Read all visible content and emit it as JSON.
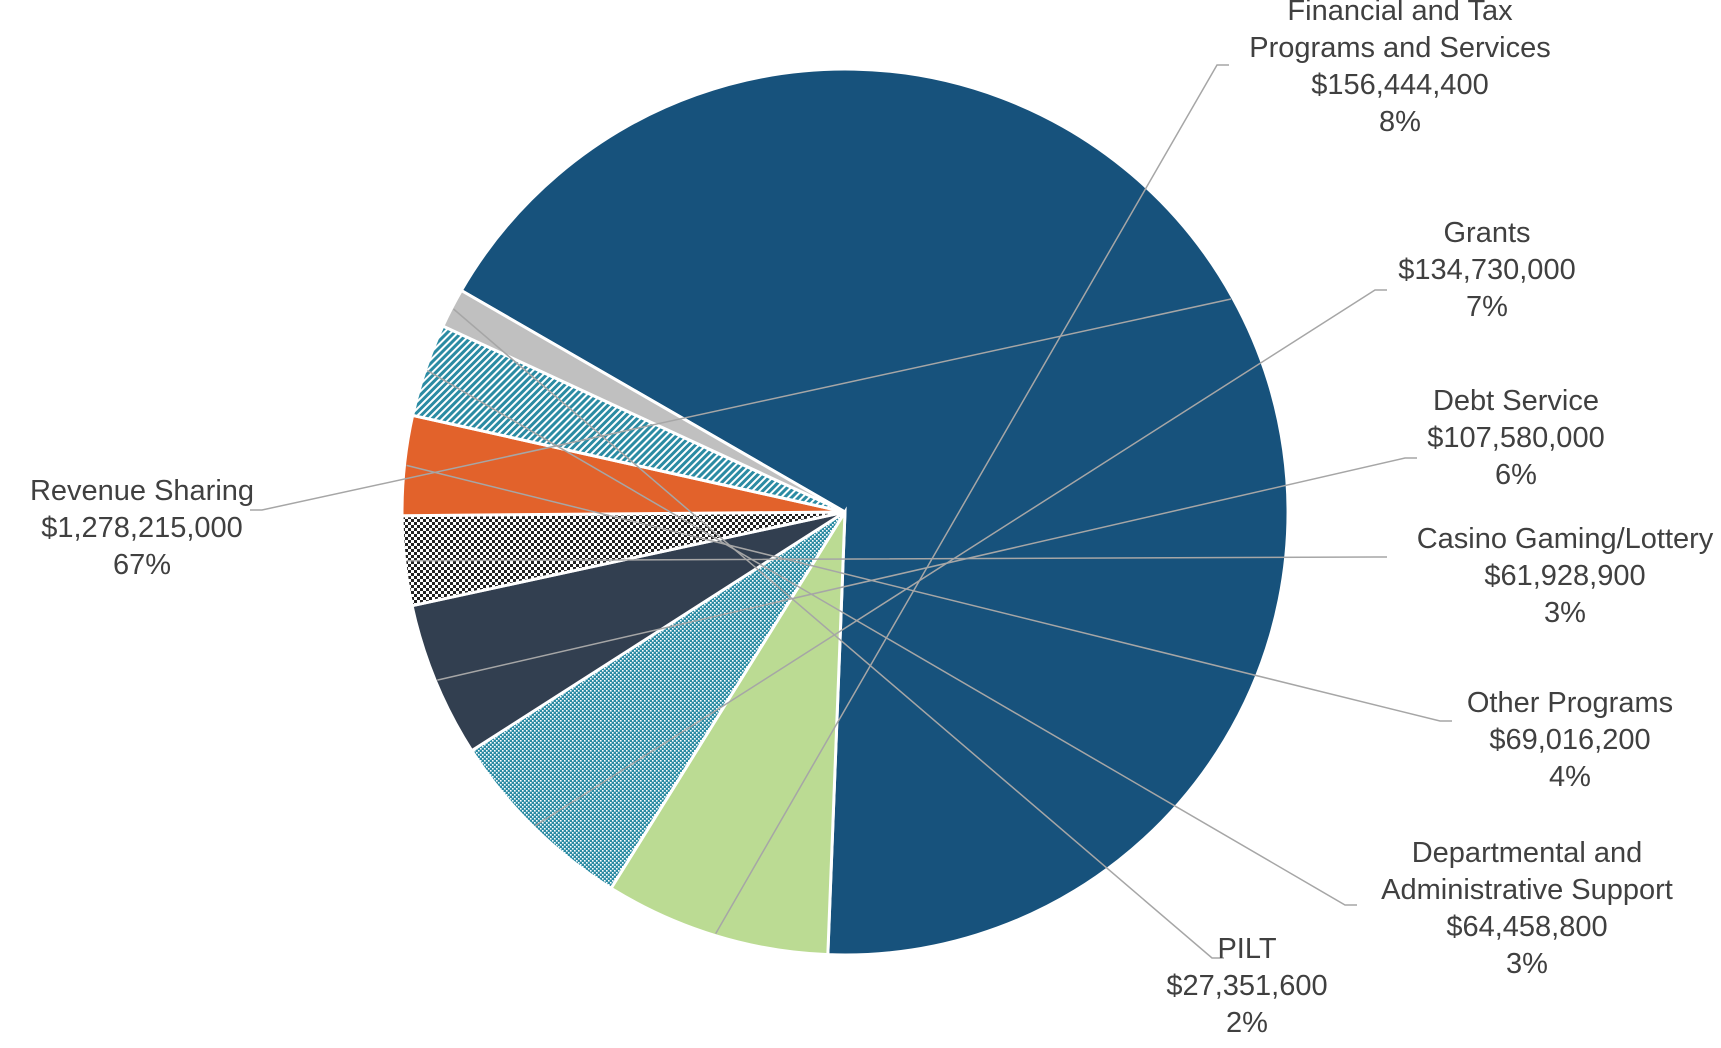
{
  "chart_data": {
    "type": "pie",
    "title": "",
    "slices": [
      {
        "label": [
          "Revenue Sharing"
        ],
        "value_text": "$1,278,215,000",
        "pct_text": "67%",
        "value": 1278215000,
        "color": "#17527c",
        "pattern": "solid"
      },
      {
        "label": [
          "Financial and Tax",
          "Programs and Services"
        ],
        "value_text": "$156,444,400",
        "pct_text": "8%",
        "value": 156444400,
        "color": "#bbdb93",
        "pattern": "solid"
      },
      {
        "label": [
          "Grants"
        ],
        "value_text": "$134,730,000",
        "pct_text": "7%",
        "value": 134730000,
        "color": "#2b8ba3",
        "pattern": "dots"
      },
      {
        "label": [
          "Debt Service"
        ],
        "value_text": "$107,580,000",
        "pct_text": "6%",
        "value": 107580000,
        "color": "#323f50",
        "pattern": "solid"
      },
      {
        "label": [
          "Casino Gaming/Lottery"
        ],
        "value_text": "$61,928,900",
        "pct_text": "3%",
        "value": 61928900,
        "color": "#222222",
        "pattern": "checker"
      },
      {
        "label": [
          "Other Programs"
        ],
        "value_text": "$69,016,200",
        "pct_text": "4%",
        "value": 69016200,
        "color": "#e2622b",
        "pattern": "solid"
      },
      {
        "label": [
          "Departmental and",
          "Administrative Support"
        ],
        "value_text": "$64,458,800",
        "pct_text": "3%",
        "value": 64458800,
        "color": "#2b8ba3",
        "pattern": "diag"
      },
      {
        "label": [
          "PILT"
        ],
        "value_text": "$27,351,600",
        "pct_text": "2%",
        "value": 27351600,
        "color": "#c0c0c0",
        "pattern": "solid"
      }
    ],
    "legend": "none"
  }
}
